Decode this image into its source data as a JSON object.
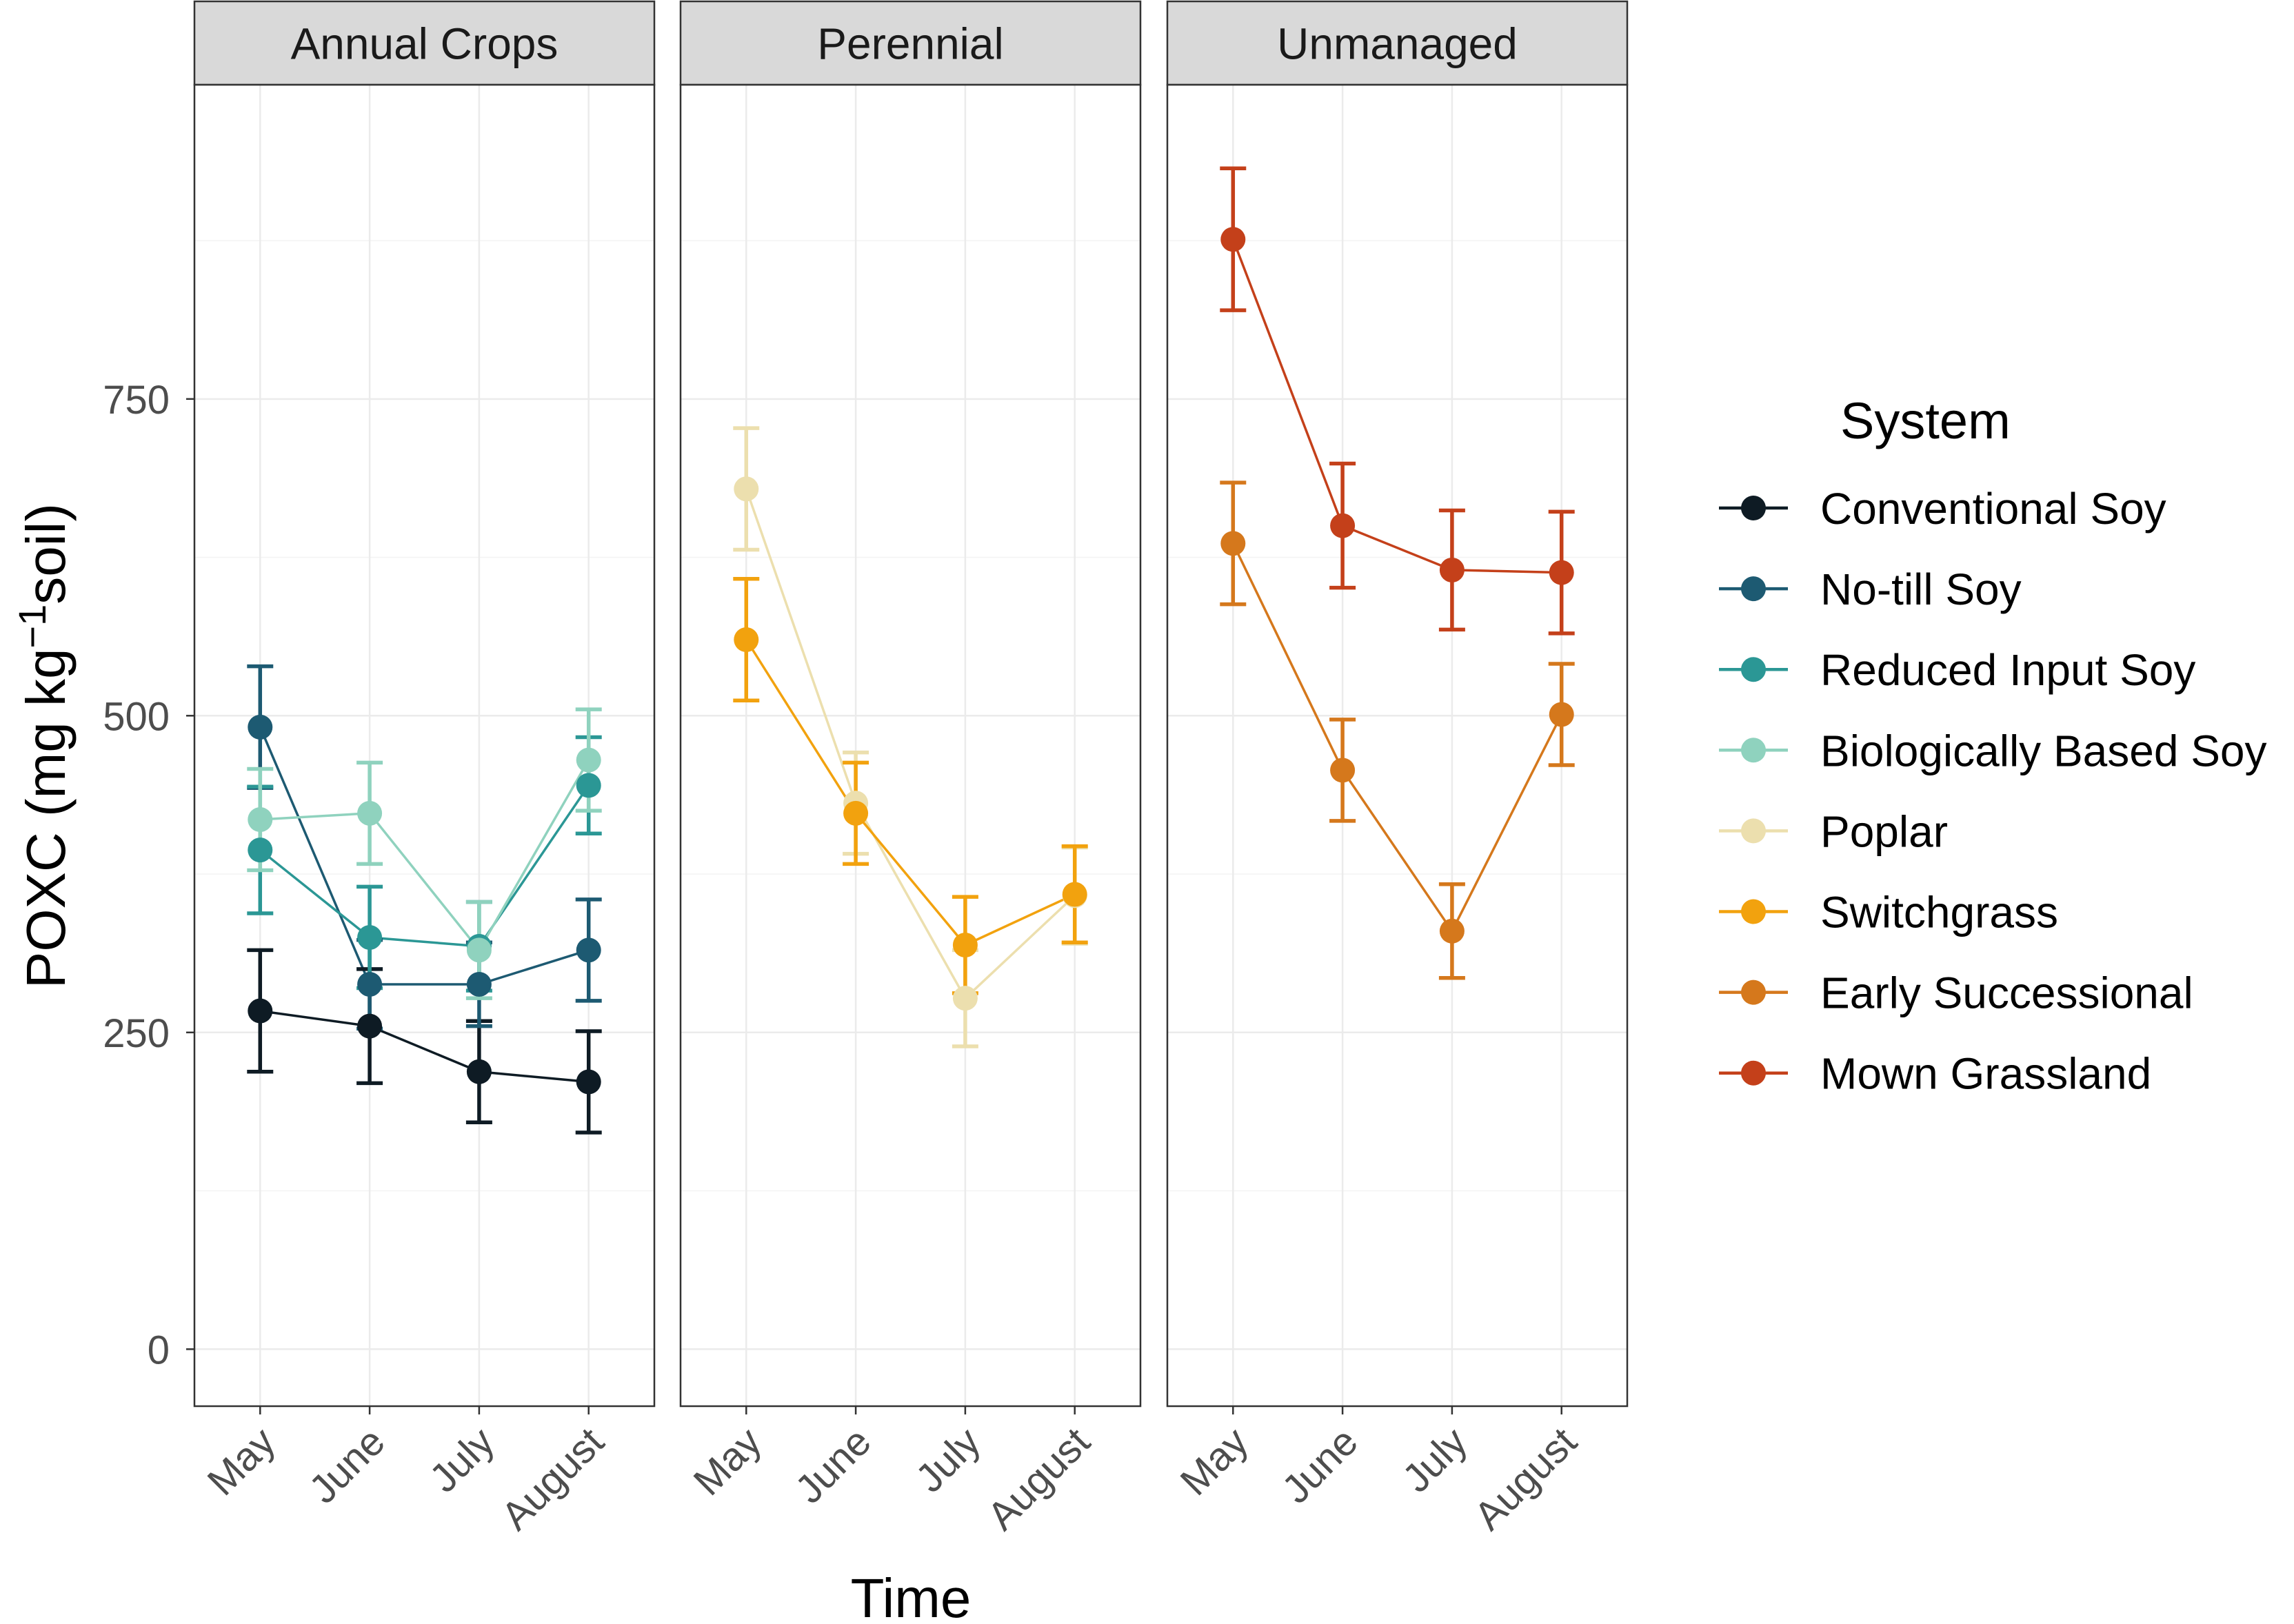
{
  "chart_data": {
    "type": "line",
    "xlabel": "Time",
    "ylabel": {
      "main": "POXC (mg kg",
      "sup": "−1",
      "end": "soil)"
    },
    "facets": [
      "Annual Crops",
      "Perennial",
      "Unmanaged"
    ],
    "categories": [
      "May",
      "June",
      "July",
      "August"
    ],
    "yticks": [
      0,
      250,
      500,
      750
    ],
    "ylim": [
      -45,
      998
    ],
    "grid": true,
    "legend": {
      "title": "System",
      "placement": "right"
    },
    "series": [
      {
        "name": "Conventional Soy",
        "panel": "Annual Crops",
        "color": "#0e1b24",
        "values": [
          267,
          255,
          219,
          211
        ],
        "errors": [
          48,
          45,
          40,
          40
        ]
      },
      {
        "name": "No-till Soy",
        "panel": "Annual Crops",
        "color": "#1d5a72",
        "values": [
          491,
          288,
          288,
          315
        ],
        "errors": [
          48,
          35,
          33,
          40
        ]
      },
      {
        "name": "Reduced Input Soy",
        "panel": "Annual Crops",
        "color": "#2b9795",
        "values": [
          394,
          325,
          318,
          445
        ],
        "errors": [
          50,
          40,
          35,
          38
        ]
      },
      {
        "name": "Biologically Based Soy",
        "panel": "Annual Crops",
        "color": "#8fd2be",
        "values": [
          418,
          423,
          315,
          465
        ],
        "errors": [
          40,
          40,
          38,
          40
        ]
      },
      {
        "name": "Poplar",
        "panel": "Perennial",
        "color": "#ecdfae",
        "values": [
          679,
          431,
          277,
          358
        ],
        "errors": [
          48,
          40,
          38,
          38
        ]
      },
      {
        "name": "Switchgrass",
        "panel": "Perennial",
        "color": "#f2a20e",
        "values": [
          560,
          423,
          319,
          359
        ],
        "errors": [
          48,
          40,
          38,
          38
        ]
      },
      {
        "name": "Early Successional",
        "panel": "Unmanaged",
        "color": "#d5781c",
        "values": [
          636,
          457,
          330,
          501
        ],
        "errors": [
          48,
          40,
          37,
          40
        ]
      },
      {
        "name": "Mown Grassland",
        "panel": "Unmanaged",
        "color": "#c4401a",
        "values": [
          876,
          650,
          615,
          613
        ],
        "errors": [
          56,
          49,
          47,
          48
        ]
      }
    ]
  }
}
